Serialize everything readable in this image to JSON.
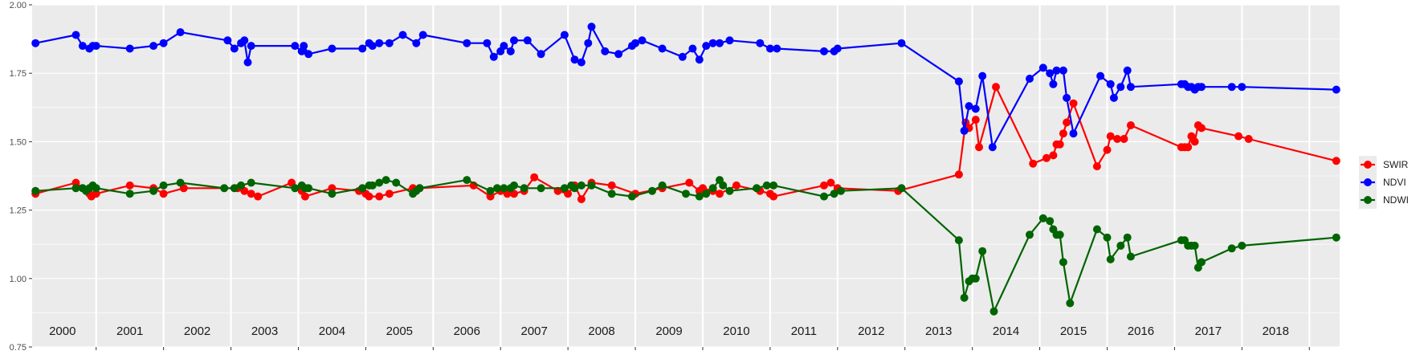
{
  "chart_data": {
    "type": "line",
    "title": "",
    "xlabel": "",
    "ylabel": "",
    "ylim": [
      0.75,
      2.0
    ],
    "xlim": [
      1999.55,
      2018.95
    ],
    "yticks": [
      0.75,
      1.0,
      1.25,
      1.5,
      1.75,
      2.0
    ],
    "ytick_labels": [
      "0.75",
      "1.00",
      "1.25",
      "1.50",
      "1.75",
      "2.00"
    ],
    "year_labels": [
      "2000",
      "2001",
      "2002",
      "2003",
      "2004",
      "2005",
      "2006",
      "2007",
      "2008",
      "2009",
      "2010",
      "2011",
      "2012",
      "2013",
      "2014",
      "2015",
      "2016",
      "2017",
      "2018"
    ],
    "grid": true,
    "legend_position": "right",
    "series": [
      {
        "name": "SWIR",
        "color": "#ff0000",
        "points": [
          [
            1999.6,
            1.31
          ],
          [
            2000.2,
            1.35
          ],
          [
            2000.3,
            1.33
          ],
          [
            2000.4,
            1.31
          ],
          [
            2000.43,
            1.3
          ],
          [
            2000.5,
            1.31
          ],
          [
            2001.0,
            1.34
          ],
          [
            2001.35,
            1.33
          ],
          [
            2001.5,
            1.31
          ],
          [
            2001.8,
            1.33
          ],
          [
            2002.6,
            1.33
          ],
          [
            2002.7,
            1.32
          ],
          [
            2002.8,
            1.31
          ],
          [
            2002.9,
            1.3
          ],
          [
            2003.4,
            1.35
          ],
          [
            2003.55,
            1.32
          ],
          [
            2003.6,
            1.3
          ],
          [
            2004.0,
            1.33
          ],
          [
            2004.4,
            1.32
          ],
          [
            2004.5,
            1.31
          ],
          [
            2004.55,
            1.3
          ],
          [
            2004.7,
            1.3
          ],
          [
            2004.85,
            1.31
          ],
          [
            2005.2,
            1.33
          ],
          [
            2005.3,
            1.33
          ],
          [
            2006.1,
            1.34
          ],
          [
            2006.35,
            1.3
          ],
          [
            2006.5,
            1.32
          ],
          [
            2006.6,
            1.31
          ],
          [
            2006.7,
            1.31
          ],
          [
            2006.85,
            1.32
          ],
          [
            2007.0,
            1.37
          ],
          [
            2007.35,
            1.32
          ],
          [
            2007.5,
            1.31
          ],
          [
            2007.6,
            1.34
          ],
          [
            2007.7,
            1.29
          ],
          [
            2007.85,
            1.35
          ],
          [
            2008.15,
            1.34
          ],
          [
            2008.5,
            1.31
          ],
          [
            2008.9,
            1.33
          ],
          [
            2009.3,
            1.35
          ],
          [
            2009.45,
            1.32
          ],
          [
            2009.5,
            1.33
          ],
          [
            2009.65,
            1.32
          ],
          [
            2009.75,
            1.31
          ],
          [
            2010.0,
            1.34
          ],
          [
            2010.35,
            1.32
          ],
          [
            2010.5,
            1.31
          ],
          [
            2010.55,
            1.3
          ],
          [
            2011.3,
            1.34
          ],
          [
            2011.4,
            1.35
          ],
          [
            2011.5,
            1.33
          ],
          [
            2012.4,
            1.32
          ],
          [
            2013.3,
            1.38
          ],
          [
            2013.4,
            1.57
          ],
          [
            2013.45,
            1.55
          ],
          [
            2013.55,
            1.58
          ],
          [
            2013.6,
            1.48
          ],
          [
            2013.85,
            1.7
          ],
          [
            2014.4,
            1.42
          ],
          [
            2014.6,
            1.44
          ],
          [
            2014.7,
            1.45
          ],
          [
            2014.75,
            1.49
          ],
          [
            2014.8,
            1.49
          ],
          [
            2014.85,
            1.53
          ],
          [
            2014.9,
            1.57
          ],
          [
            2015.0,
            1.64
          ],
          [
            2015.35,
            1.41
          ],
          [
            2015.5,
            1.47
          ],
          [
            2015.55,
            1.52
          ],
          [
            2015.65,
            1.51
          ],
          [
            2015.75,
            1.51
          ],
          [
            2015.85,
            1.56
          ],
          [
            2016.6,
            1.48
          ],
          [
            2016.65,
            1.48
          ],
          [
            2016.7,
            1.48
          ],
          [
            2016.75,
            1.52
          ],
          [
            2016.8,
            1.5
          ],
          [
            2016.85,
            1.56
          ],
          [
            2016.9,
            1.55
          ],
          [
            2017.45,
            1.52
          ],
          [
            2017.6,
            1.51
          ],
          [
            2018.9,
            1.43
          ]
        ]
      },
      {
        "name": "NDVI",
        "color": "#0000ff",
        "points": [
          [
            1999.6,
            1.86
          ],
          [
            2000.2,
            1.89
          ],
          [
            2000.3,
            1.85
          ],
          [
            2000.4,
            1.84
          ],
          [
            2000.45,
            1.85
          ],
          [
            2000.5,
            1.85
          ],
          [
            2001.0,
            1.84
          ],
          [
            2001.35,
            1.85
          ],
          [
            2001.5,
            1.86
          ],
          [
            2001.75,
            1.9
          ],
          [
            2002.45,
            1.87
          ],
          [
            2002.55,
            1.84
          ],
          [
            2002.65,
            1.86
          ],
          [
            2002.7,
            1.87
          ],
          [
            2002.75,
            1.79
          ],
          [
            2002.8,
            1.85
          ],
          [
            2003.45,
            1.85
          ],
          [
            2003.55,
            1.83
          ],
          [
            2003.58,
            1.85
          ],
          [
            2003.65,
            1.82
          ],
          [
            2004.0,
            1.84
          ],
          [
            2004.45,
            1.84
          ],
          [
            2004.55,
            1.86
          ],
          [
            2004.6,
            1.85
          ],
          [
            2004.7,
            1.86
          ],
          [
            2004.85,
            1.86
          ],
          [
            2005.05,
            1.89
          ],
          [
            2005.25,
            1.86
          ],
          [
            2005.35,
            1.89
          ],
          [
            2006.0,
            1.86
          ],
          [
            2006.3,
            1.86
          ],
          [
            2006.4,
            1.81
          ],
          [
            2006.5,
            1.83
          ],
          [
            2006.55,
            1.85
          ],
          [
            2006.65,
            1.83
          ],
          [
            2006.7,
            1.87
          ],
          [
            2006.9,
            1.87
          ],
          [
            2007.1,
            1.82
          ],
          [
            2007.45,
            1.89
          ],
          [
            2007.6,
            1.8
          ],
          [
            2007.7,
            1.79
          ],
          [
            2007.8,
            1.86
          ],
          [
            2007.85,
            1.92
          ],
          [
            2008.05,
            1.83
          ],
          [
            2008.25,
            1.82
          ],
          [
            2008.45,
            1.85
          ],
          [
            2008.5,
            1.86
          ],
          [
            2008.6,
            1.87
          ],
          [
            2008.9,
            1.84
          ],
          [
            2009.2,
            1.81
          ],
          [
            2009.35,
            1.84
          ],
          [
            2009.45,
            1.8
          ],
          [
            2009.55,
            1.85
          ],
          [
            2009.65,
            1.86
          ],
          [
            2009.75,
            1.86
          ],
          [
            2009.9,
            1.87
          ],
          [
            2010.35,
            1.86
          ],
          [
            2010.5,
            1.84
          ],
          [
            2010.6,
            1.84
          ],
          [
            2011.3,
            1.83
          ],
          [
            2011.45,
            1.83
          ],
          [
            2011.5,
            1.84
          ],
          [
            2012.45,
            1.86
          ],
          [
            2013.3,
            1.72
          ],
          [
            2013.38,
            1.54
          ],
          [
            2013.45,
            1.63
          ],
          [
            2013.55,
            1.62
          ],
          [
            2013.65,
            1.74
          ],
          [
            2013.8,
            1.48
          ],
          [
            2014.35,
            1.73
          ],
          [
            2014.55,
            1.77
          ],
          [
            2014.65,
            1.75
          ],
          [
            2014.7,
            1.71
          ],
          [
            2014.75,
            1.76
          ],
          [
            2014.85,
            1.76
          ],
          [
            2014.9,
            1.66
          ],
          [
            2015.0,
            1.53
          ],
          [
            2015.4,
            1.74
          ],
          [
            2015.55,
            1.71
          ],
          [
            2015.6,
            1.66
          ],
          [
            2015.7,
            1.7
          ],
          [
            2015.8,
            1.76
          ],
          [
            2015.85,
            1.7
          ],
          [
            2016.6,
            1.71
          ],
          [
            2016.65,
            1.71
          ],
          [
            2016.7,
            1.7
          ],
          [
            2016.75,
            1.7
          ],
          [
            2016.8,
            1.69
          ],
          [
            2016.85,
            1.7
          ],
          [
            2016.9,
            1.7
          ],
          [
            2017.35,
            1.7
          ],
          [
            2017.5,
            1.7
          ],
          [
            2018.9,
            1.69
          ]
        ]
      },
      {
        "name": "NDWI",
        "color": "#006400",
        "points": [
          [
            1999.6,
            1.32
          ],
          [
            2000.2,
            1.33
          ],
          [
            2000.3,
            1.33
          ],
          [
            2000.35,
            1.32
          ],
          [
            2000.4,
            1.33
          ],
          [
            2000.45,
            1.34
          ],
          [
            2000.5,
            1.33
          ],
          [
            2001.0,
            1.31
          ],
          [
            2001.35,
            1.32
          ],
          [
            2001.5,
            1.34
          ],
          [
            2001.75,
            1.35
          ],
          [
            2002.4,
            1.33
          ],
          [
            2002.55,
            1.33
          ],
          [
            2002.65,
            1.34
          ],
          [
            2002.8,
            1.35
          ],
          [
            2003.45,
            1.33
          ],
          [
            2003.55,
            1.34
          ],
          [
            2003.6,
            1.33
          ],
          [
            2003.65,
            1.33
          ],
          [
            2004.0,
            1.31
          ],
          [
            2004.45,
            1.33
          ],
          [
            2004.55,
            1.34
          ],
          [
            2004.6,
            1.34
          ],
          [
            2004.7,
            1.35
          ],
          [
            2004.8,
            1.36
          ],
          [
            2004.95,
            1.35
          ],
          [
            2005.2,
            1.31
          ],
          [
            2005.25,
            1.32
          ],
          [
            2005.3,
            1.33
          ],
          [
            2006.0,
            1.36
          ],
          [
            2006.35,
            1.32
          ],
          [
            2006.45,
            1.33
          ],
          [
            2006.55,
            1.33
          ],
          [
            2006.65,
            1.33
          ],
          [
            2006.7,
            1.34
          ],
          [
            2006.85,
            1.33
          ],
          [
            2007.1,
            1.33
          ],
          [
            2007.45,
            1.33
          ],
          [
            2007.55,
            1.34
          ],
          [
            2007.6,
            1.33
          ],
          [
            2007.7,
            1.34
          ],
          [
            2007.85,
            1.34
          ],
          [
            2008.15,
            1.31
          ],
          [
            2008.45,
            1.3
          ],
          [
            2008.75,
            1.32
          ],
          [
            2008.9,
            1.34
          ],
          [
            2009.25,
            1.31
          ],
          [
            2009.45,
            1.3
          ],
          [
            2009.55,
            1.31
          ],
          [
            2009.65,
            1.33
          ],
          [
            2009.75,
            1.36
          ],
          [
            2009.8,
            1.34
          ],
          [
            2009.9,
            1.32
          ],
          [
            2010.3,
            1.33
          ],
          [
            2010.45,
            1.34
          ],
          [
            2010.55,
            1.34
          ],
          [
            2011.3,
            1.3
          ],
          [
            2011.45,
            1.31
          ],
          [
            2011.55,
            1.32
          ],
          [
            2012.45,
            1.33
          ],
          [
            2013.3,
            1.14
          ],
          [
            2013.38,
            0.93
          ],
          [
            2013.45,
            0.99
          ],
          [
            2013.5,
            1.0
          ],
          [
            2013.55,
            1.0
          ],
          [
            2013.65,
            1.1
          ],
          [
            2013.82,
            0.88
          ],
          [
            2014.35,
            1.16
          ],
          [
            2014.55,
            1.22
          ],
          [
            2014.65,
            1.21
          ],
          [
            2014.7,
            1.18
          ],
          [
            2014.75,
            1.16
          ],
          [
            2014.8,
            1.16
          ],
          [
            2014.85,
            1.06
          ],
          [
            2014.95,
            0.91
          ],
          [
            2015.35,
            1.18
          ],
          [
            2015.5,
            1.15
          ],
          [
            2015.55,
            1.07
          ],
          [
            2015.7,
            1.12
          ],
          [
            2015.8,
            1.15
          ],
          [
            2015.85,
            1.08
          ],
          [
            2016.6,
            1.14
          ],
          [
            2016.65,
            1.14
          ],
          [
            2016.7,
            1.12
          ],
          [
            2016.75,
            1.12
          ],
          [
            2016.8,
            1.12
          ],
          [
            2016.85,
            1.04
          ],
          [
            2016.9,
            1.06
          ],
          [
            2017.35,
            1.11
          ],
          [
            2017.5,
            1.12
          ],
          [
            2018.9,
            1.15
          ]
        ]
      }
    ]
  }
}
